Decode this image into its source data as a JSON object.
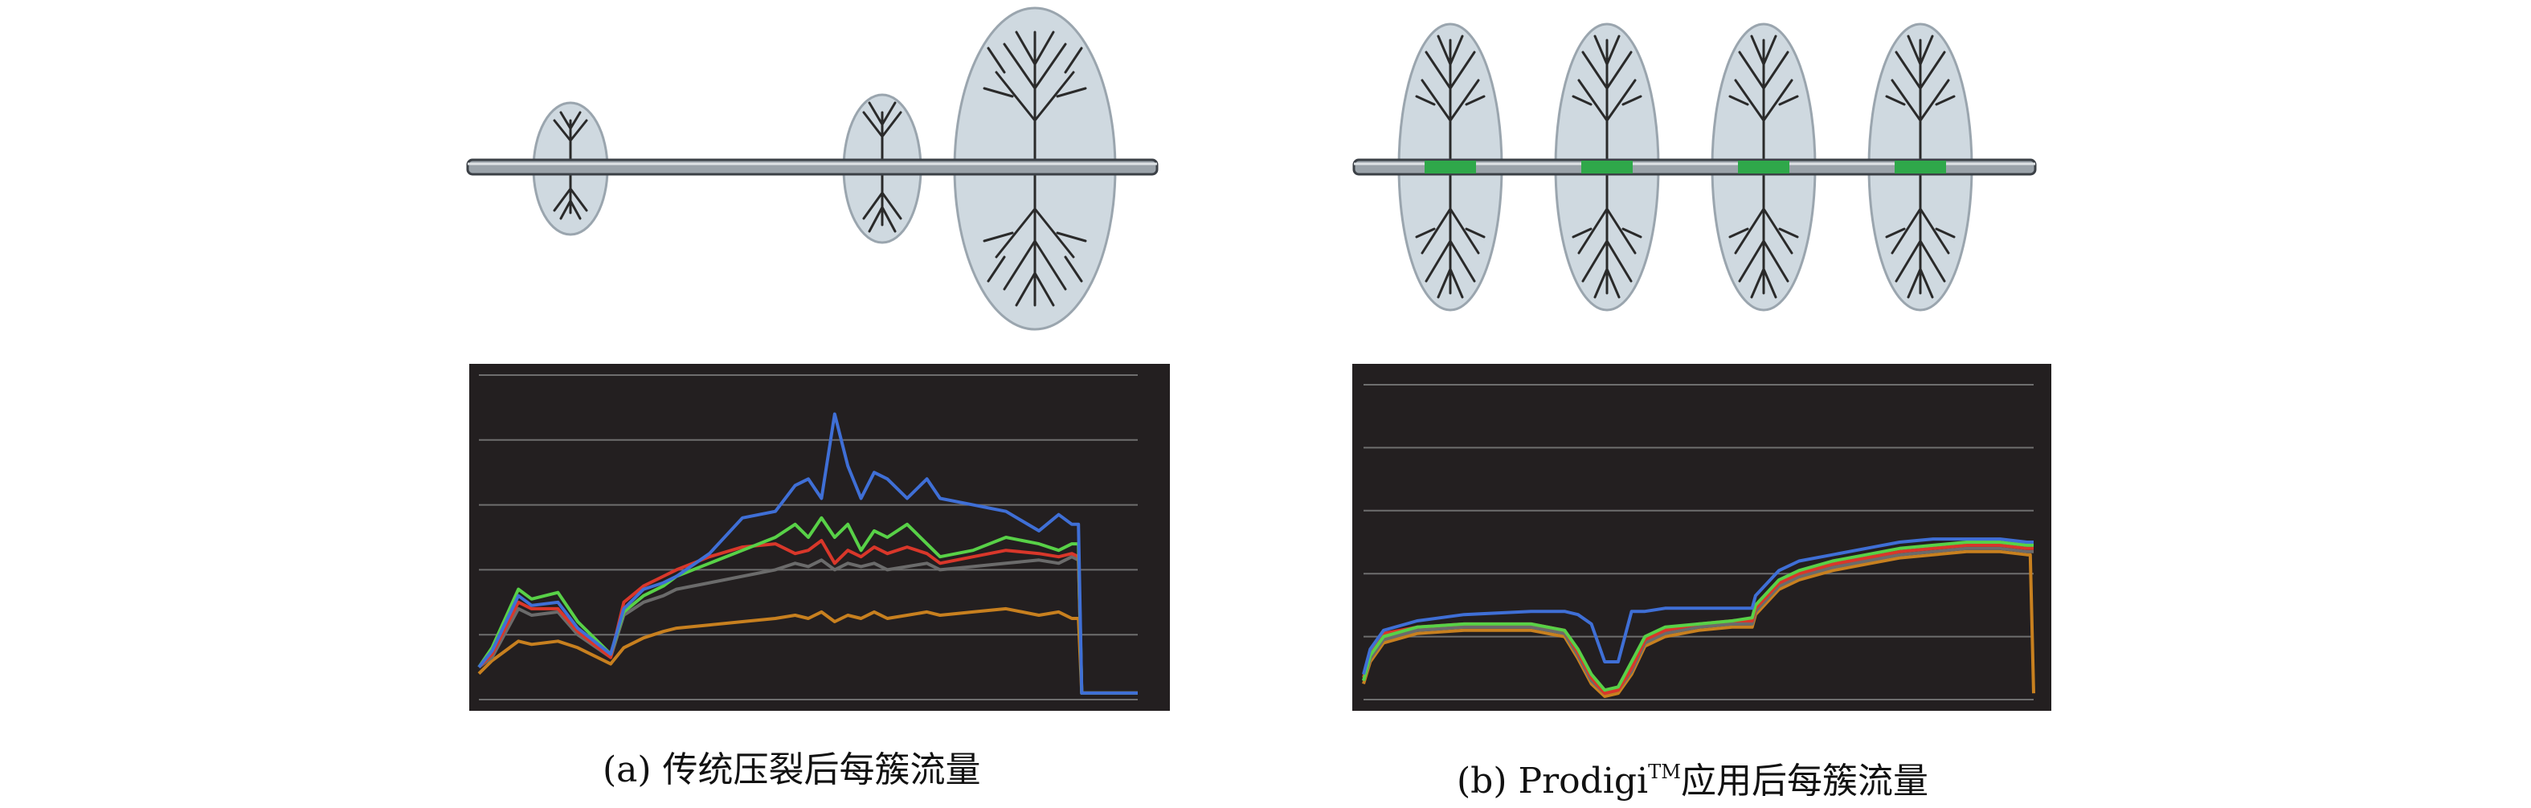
{
  "panels": [
    {
      "id": "a",
      "caption": "(a) 传统压裂后每簇流量",
      "chart_data": {
        "type": "line",
        "title": "",
        "xlabel": "",
        "ylabel": "",
        "grid": true,
        "ylim": [
          0,
          100
        ],
        "xlim": [
          0,
          100
        ],
        "colors": [
          "#3f6fd6",
          "#58d147",
          "#d9372a",
          "#6b6b6b",
          "#c8801f"
        ],
        "series": [
          {
            "x": [
              0,
              2,
              6,
              8,
              12,
              15,
              20,
              22,
              25,
              28,
              30,
              35,
              40,
              45,
              48,
              50,
              52,
              54,
              56,
              58,
              60,
              62,
              65,
              68,
              70,
              75,
              80,
              85,
              88,
              90,
              91,
              91.5,
              100
            ],
            "y": [
              10,
              15,
              32,
              29,
              30,
              22,
              14,
              28,
              34,
              36,
              38,
              45,
              56,
              58,
              66,
              68,
              62,
              88,
              72,
              62,
              70,
              68,
              62,
              68,
              62,
              60,
              58,
              52,
              57,
              54,
              54,
              2,
              2
            ]
          },
          {
            "x": [
              0,
              2,
              6,
              8,
              12,
              15,
              20,
              22,
              25,
              28,
              30,
              35,
              40,
              45,
              48,
              50,
              52,
              54,
              56,
              58,
              60,
              62,
              65,
              68,
              70,
              75,
              80,
              85,
              88,
              90,
              91,
              91.5,
              100
            ],
            "y": [
              10,
              16,
              34,
              31,
              33,
              24,
              14,
              27,
              32,
              35,
              38,
              42,
              46,
              50,
              54,
              50,
              56,
              50,
              54,
              46,
              52,
              50,
              54,
              48,
              44,
              46,
              50,
              48,
              46,
              48,
              48,
              2,
              2
            ]
          },
          {
            "x": [
              0,
              2,
              6,
              8,
              12,
              15,
              20,
              22,
              25,
              28,
              30,
              35,
              40,
              45,
              48,
              50,
              52,
              54,
              56,
              58,
              60,
              62,
              65,
              68,
              70,
              75,
              80,
              85,
              88,
              90,
              91,
              91.5,
              100
            ],
            "y": [
              10,
              14,
              30,
              28,
              28,
              21,
              13,
              30,
              35,
              38,
              40,
              44,
              47,
              48,
              45,
              46,
              49,
              42,
              46,
              44,
              47,
              45,
              47,
              45,
              42,
              44,
              46,
              45,
              44,
              45,
              44,
              2,
              2
            ]
          },
          {
            "x": [
              0,
              2,
              6,
              8,
              12,
              15,
              20,
              22,
              25,
              28,
              30,
              35,
              40,
              45,
              48,
              50,
              52,
              54,
              56,
              58,
              60,
              62,
              65,
              68,
              70,
              75,
              80,
              85,
              88,
              90,
              91,
              91.5,
              100
            ],
            "y": [
              10,
              13,
              28,
              26,
              27,
              20,
              13,
              26,
              30,
              32,
              34,
              36,
              38,
              40,
              42,
              41,
              43,
              40,
              42,
              41,
              42,
              40,
              41,
              42,
              40,
              41,
              42,
              43,
              42,
              44,
              43,
              2,
              2
            ]
          },
          {
            "x": [
              0,
              2,
              6,
              8,
              12,
              15,
              20,
              22,
              25,
              28,
              30,
              35,
              40,
              45,
              48,
              50,
              52,
              54,
              56,
              58,
              60,
              62,
              65,
              68,
              70,
              75,
              80,
              85,
              88,
              90,
              91,
              91.5,
              100
            ],
            "y": [
              8,
              12,
              18,
              17,
              18,
              16,
              11,
              16,
              19,
              21,
              22,
              23,
              24,
              25,
              26,
              25,
              27,
              24,
              26,
              25,
              27,
              25,
              26,
              27,
              26,
              27,
              28,
              26,
              27,
              25,
              25,
              2,
              2
            ]
          }
        ]
      }
    },
    {
      "id": "b",
      "caption_prefix": "(b) Prodigi",
      "caption_tm": "TM",
      "caption_suffix": "应用后每簇流量",
      "chart_data": {
        "type": "line",
        "title": "",
        "xlabel": "",
        "ylabel": "",
        "grid": true,
        "ylim": [
          0,
          100
        ],
        "xlim": [
          0,
          100
        ],
        "colors": [
          "#3f6fd6",
          "#58d147",
          "#d9372a",
          "#6b6b6b",
          "#c8801f"
        ],
        "series": [
          {
            "x": [
              0,
              1,
              3,
              8,
              15,
              25,
              30,
              32,
              34,
              36,
              38,
              40,
              42,
              45,
              50,
              55,
              58,
              58.5,
              62,
              65,
              70,
              75,
              80,
              85,
              90,
              95,
              99,
              99.5,
              100
            ],
            "y": [
              8,
              16,
              22,
              25,
              27,
              28,
              28,
              27,
              24,
              12,
              12,
              28,
              28,
              29,
              29,
              29,
              29,
              33,
              41,
              44,
              46,
              48,
              50,
              51,
              51,
              51,
              50,
              50,
              50
            ]
          },
          {
            "x": [
              0,
              1,
              3,
              8,
              15,
              25,
              30,
              32,
              34,
              36,
              38,
              40,
              42,
              45,
              50,
              55,
              58,
              58.5,
              62,
              65,
              70,
              75,
              80,
              85,
              90,
              95,
              99,
              99.5,
              100
            ],
            "y": [
              6,
              14,
              20,
              23,
              24,
              24,
              22,
              16,
              8,
              3,
              4,
              12,
              20,
              23,
              24,
              25,
              26,
              30,
              38,
              41,
              44,
              46,
              48,
              49,
              50,
              50,
              49,
              49,
              49
            ]
          },
          {
            "x": [
              0,
              1,
              3,
              8,
              15,
              25,
              30,
              32,
              34,
              36,
              38,
              40,
              42,
              45,
              50,
              55,
              58,
              58.5,
              62,
              65,
              70,
              75,
              80,
              85,
              90,
              95,
              99,
              99.5,
              100
            ],
            "y": [
              7,
              15,
              21,
              23,
              24,
              24,
              22,
              15,
              7,
              2,
              3,
              10,
              19,
              22,
              24,
              25,
              25,
              29,
              37,
              40,
              43,
              45,
              47,
              48,
              49,
              49,
              48,
              48,
              48
            ]
          },
          {
            "x": [
              0,
              1,
              3,
              8,
              15,
              25,
              30,
              32,
              34,
              36,
              38,
              40,
              42,
              45,
              50,
              55,
              58,
              58.5,
              62,
              65,
              70,
              75,
              80,
              85,
              90,
              95,
              99,
              99.5,
              100
            ],
            "y": [
              6,
              13,
              19,
              22,
              23,
              23,
              21,
              14,
              6,
              2,
              3,
              9,
              18,
              21,
              23,
              24,
              24,
              28,
              36,
              39,
              42,
              44,
              46,
              47,
              48,
              48,
              47,
              47,
              47
            ]
          },
          {
            "x": [
              0,
              1,
              3,
              8,
              15,
              25,
              30,
              32,
              34,
              36,
              38,
              40,
              42,
              45,
              50,
              55,
              58,
              58.5,
              62,
              65,
              70,
              75,
              80,
              85,
              90,
              95,
              99,
              99.5,
              100
            ],
            "y": [
              5,
              12,
              18,
              21,
              22,
              22,
              20,
              13,
              5,
              1,
              2,
              8,
              17,
              20,
              22,
              23,
              23,
              27,
              35,
              38,
              41,
              43,
              45,
              46,
              47,
              47,
              46,
              46,
              2
            ]
          }
        ]
      }
    }
  ]
}
